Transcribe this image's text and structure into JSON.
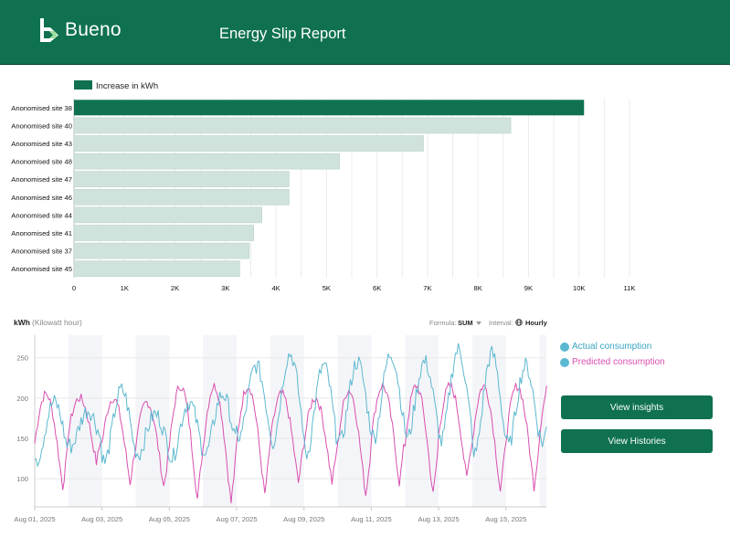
{
  "header": {
    "brand": "Bueno",
    "title": "Energy Slip Report"
  },
  "colors": {
    "brand": "#0f7150",
    "bar_highlight": "#0f7150",
    "bar_default": "#cfe3dc",
    "actual": "#5cb8d0",
    "predicted": "#d94fb0"
  },
  "chart_data": [
    {
      "type": "bar",
      "orientation": "horizontal",
      "legend": "Increase in kWh",
      "categories": [
        "Anonomised site 38",
        "Anonomised site 40",
        "Anonomised site 43",
        "Anonomised site 48",
        "Anonomised site 47",
        "Anonomised site 46",
        "Anonomised site 44",
        "Anonomised site 41",
        "Anonomised site 37",
        "Anonomised site 45"
      ],
      "values": [
        10100,
        8650,
        6920,
        5260,
        4260,
        4260,
        3720,
        3560,
        3470,
        3280
      ],
      "xlim": [
        0,
        11000
      ],
      "xticks": [
        0,
        1000,
        2000,
        3000,
        4000,
        5000,
        6000,
        7000,
        8000,
        9000,
        10000,
        11000
      ],
      "xtick_labels": [
        "0",
        "1K",
        "2K",
        "3K",
        "4K",
        "5K",
        "6K",
        "7K",
        "8K",
        "9K",
        "10K",
        "11K"
      ]
    },
    {
      "type": "line",
      "unit_label": "kWh",
      "unit_desc": "(Kilowatt hour)",
      "formula_label": "Formula:",
      "formula_value": "SUM",
      "interval_label": "Interval:",
      "interval_value": "Hourly",
      "ylim": [
        65,
        278
      ],
      "yticks": [
        100,
        150,
        200,
        250
      ],
      "x_start": "2025-08-01",
      "days": 15.2,
      "xtick_labels": [
        "Aug 01, 2025",
        "Aug 03, 2025",
        "Aug 05, 2025",
        "Aug 07, 2025",
        "Aug 09, 2025",
        "Aug 11, 2025",
        "Aug 13, 2025",
        "Aug 15, 2025"
      ],
      "shaded_day_ranges": [
        [
          1,
          2
        ],
        [
          3,
          4
        ],
        [
          5,
          6
        ],
        [
          7,
          8
        ],
        [
          9,
          10
        ],
        [
          11,
          12
        ],
        [
          13,
          14
        ],
        [
          15,
          15.2
        ]
      ],
      "series": [
        {
          "name": "Actual consumption",
          "daily_peaks": [
            195,
            185,
            210,
            180,
            195,
            205,
            240,
            255,
            240,
            245,
            255,
            245,
            260,
            255,
            240,
            230
          ],
          "daily_lows": [
            125,
            140,
            120,
            130,
            125,
            130,
            150,
            145,
            130,
            145,
            150,
            150,
            145,
            130,
            140,
            145
          ]
        },
        {
          "name": "Predicted consumption",
          "daily_peaks": [
            205,
            200,
            200,
            195,
            215,
            215,
            215,
            205,
            200,
            210,
            215,
            215,
            215,
            215,
            215,
            220
          ],
          "daily_lows": [
            90,
            120,
            95,
            90,
            75,
            70,
            80,
            95,
            95,
            80,
            95,
            80,
            100,
            85,
            90,
            100
          ]
        }
      ]
    }
  ],
  "legend_items": [
    "Actual consumption",
    "Predicted consumption"
  ],
  "buttons": {
    "insights": "View insights",
    "histories": "View Histories"
  }
}
